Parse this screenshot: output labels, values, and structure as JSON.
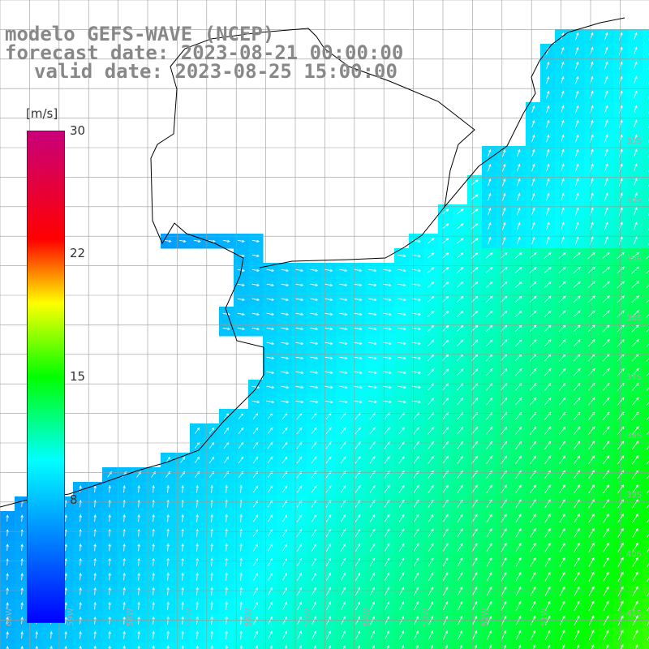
{
  "titles": {
    "model": "modelo GEFS-WAVE (NCEP)",
    "forecast": "forecast date: 2023-08-21 00:00:00",
    "valid": "valid date: 2023-08-25 15:00:00"
  },
  "legend": {
    "unit": "[m/s]",
    "ticks": [
      "30",
      "22",
      "15",
      "8"
    ],
    "tick_values": [
      30,
      22,
      15,
      8
    ],
    "range": [
      0,
      30
    ],
    "colors": [
      "#0000ff",
      "#00ffff",
      "#00ff00",
      "#ffff00",
      "#ff0000",
      "#c8007a"
    ]
  },
  "map": {
    "lat_labels": [
      "33S",
      "34S",
      "35S",
      "36S",
      "37S",
      "38S",
      "39S",
      "40S",
      "41S"
    ],
    "lon_labels": [
      "60W",
      "59W",
      "58W",
      "57W",
      "56W",
      "55W",
      "54W",
      "53W",
      "52W",
      "51W"
    ],
    "land_color": "#ffffff",
    "grid_color": "#999999",
    "arrow_color": "#ffffff"
  }
}
